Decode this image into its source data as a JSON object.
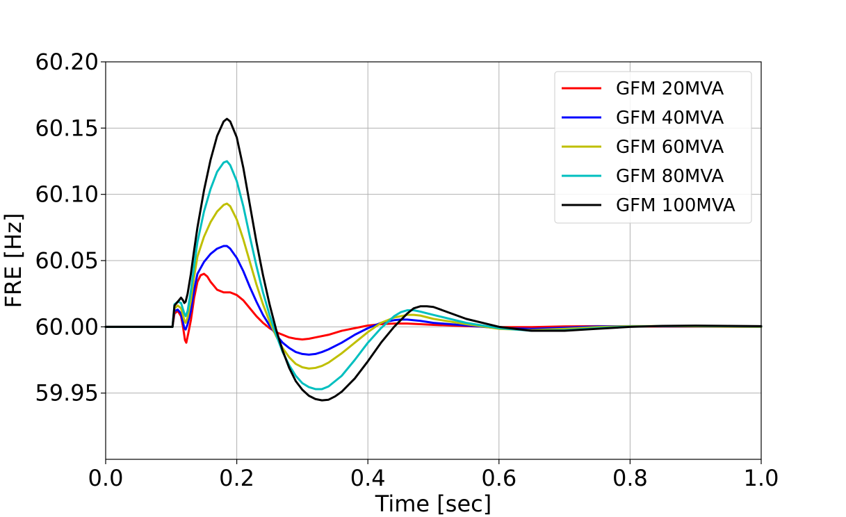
{
  "chart_data": {
    "type": "line",
    "title": "",
    "xlabel": "Time [sec]",
    "ylabel": "FRE [Hz]",
    "xlim": [
      0.0,
      1.0
    ],
    "ylim": [
      59.9,
      60.2
    ],
    "xticks": [
      0.0,
      0.2,
      0.4,
      0.6,
      0.8,
      1.0
    ],
    "xtick_labels": [
      "0.0",
      "0.2",
      "0.4",
      "0.6",
      "0.8",
      "1.0"
    ],
    "yticks": [
      59.95,
      60.0,
      60.05,
      60.1,
      60.15,
      60.2
    ],
    "ytick_labels": [
      "59.95",
      "60.00",
      "60.05",
      "60.10",
      "60.15",
      "60.20"
    ],
    "grid": true,
    "legend_position": "top-right",
    "series": [
      {
        "name": "GFM 20MVA",
        "color": "#ff0000",
        "points": [
          [
            0.0,
            60.0
          ],
          [
            0.1,
            60.0
          ],
          [
            0.102,
            60.0
          ],
          [
            0.105,
            60.01
          ],
          [
            0.11,
            60.012
          ],
          [
            0.115,
            60.008
          ],
          [
            0.118,
            60.0
          ],
          [
            0.121,
            59.99
          ],
          [
            0.123,
            59.988
          ],
          [
            0.126,
            59.995
          ],
          [
            0.13,
            60.005
          ],
          [
            0.135,
            60.022
          ],
          [
            0.14,
            60.034
          ],
          [
            0.145,
            60.039
          ],
          [
            0.15,
            60.04
          ],
          [
            0.155,
            60.038
          ],
          [
            0.16,
            60.034
          ],
          [
            0.165,
            60.031
          ],
          [
            0.17,
            60.028
          ],
          [
            0.18,
            60.026
          ],
          [
            0.19,
            60.026
          ],
          [
            0.2,
            60.024
          ],
          [
            0.21,
            60.02
          ],
          [
            0.22,
            60.014
          ],
          [
            0.23,
            60.008
          ],
          [
            0.24,
            60.003
          ],
          [
            0.25,
            59.999
          ],
          [
            0.26,
            59.996
          ],
          [
            0.27,
            59.994
          ],
          [
            0.28,
            59.992
          ],
          [
            0.29,
            59.991
          ],
          [
            0.3,
            59.9905
          ],
          [
            0.31,
            59.991
          ],
          [
            0.32,
            59.992
          ],
          [
            0.34,
            59.994
          ],
          [
            0.36,
            59.997
          ],
          [
            0.38,
            59.999
          ],
          [
            0.4,
            60.001
          ],
          [
            0.42,
            60.002
          ],
          [
            0.44,
            60.0025
          ],
          [
            0.46,
            60.0025
          ],
          [
            0.48,
            60.002
          ],
          [
            0.5,
            60.0015
          ],
          [
            0.55,
            60.0005
          ],
          [
            0.6,
            59.9998
          ],
          [
            0.65,
            59.9998
          ],
          [
            0.7,
            60.0003
          ],
          [
            0.75,
            60.0005
          ],
          [
            0.8,
            60.0003
          ],
          [
            0.85,
            60.0002
          ],
          [
            0.9,
            60.0001
          ],
          [
            1.0,
            60.0
          ]
        ]
      },
      {
        "name": "GFM 40MVA",
        "color": "#0000ff",
        "points": [
          [
            0.0,
            60.0
          ],
          [
            0.1,
            60.0
          ],
          [
            0.102,
            60.0
          ],
          [
            0.105,
            60.012
          ],
          [
            0.11,
            60.013
          ],
          [
            0.115,
            60.01
          ],
          [
            0.12,
            59.999
          ],
          [
            0.122,
            59.998
          ],
          [
            0.125,
            60.002
          ],
          [
            0.13,
            60.012
          ],
          [
            0.135,
            60.028
          ],
          [
            0.14,
            60.04
          ],
          [
            0.15,
            60.049
          ],
          [
            0.16,
            60.055
          ],
          [
            0.17,
            60.059
          ],
          [
            0.18,
            60.061
          ],
          [
            0.185,
            60.061
          ],
          [
            0.19,
            60.059
          ],
          [
            0.2,
            60.052
          ],
          [
            0.21,
            60.042
          ],
          [
            0.22,
            60.03
          ],
          [
            0.23,
            60.019
          ],
          [
            0.24,
            60.009
          ],
          [
            0.25,
            60.001
          ],
          [
            0.26,
            59.994
          ],
          [
            0.27,
            59.988
          ],
          [
            0.28,
            59.984
          ],
          [
            0.29,
            59.981
          ],
          [
            0.3,
            59.9795
          ],
          [
            0.31,
            59.979
          ],
          [
            0.32,
            59.9795
          ],
          [
            0.33,
            59.981
          ],
          [
            0.34,
            59.983
          ],
          [
            0.36,
            59.988
          ],
          [
            0.38,
            59.994
          ],
          [
            0.4,
            59.999
          ],
          [
            0.42,
            60.003
          ],
          [
            0.44,
            60.005
          ],
          [
            0.45,
            60.0055
          ],
          [
            0.46,
            60.0055
          ],
          [
            0.48,
            60.0045
          ],
          [
            0.5,
            60.003
          ],
          [
            0.55,
            60.001
          ],
          [
            0.6,
            59.999
          ],
          [
            0.65,
            59.9985
          ],
          [
            0.7,
            59.9993
          ],
          [
            0.75,
            60.0003
          ],
          [
            0.8,
            60.0005
          ],
          [
            0.85,
            60.0004
          ],
          [
            0.9,
            60.0003
          ],
          [
            1.0,
            60.0
          ]
        ]
      },
      {
        "name": "GFM 60MVA",
        "color": "#bfbf00",
        "points": [
          [
            0.0,
            60.0
          ],
          [
            0.1,
            60.0
          ],
          [
            0.102,
            60.0
          ],
          [
            0.105,
            60.014
          ],
          [
            0.11,
            60.016
          ],
          [
            0.115,
            60.014
          ],
          [
            0.12,
            60.005
          ],
          [
            0.122,
            60.003
          ],
          [
            0.125,
            60.007
          ],
          [
            0.13,
            60.02
          ],
          [
            0.135,
            60.038
          ],
          [
            0.14,
            60.053
          ],
          [
            0.15,
            60.068
          ],
          [
            0.16,
            60.079
          ],
          [
            0.17,
            60.087
          ],
          [
            0.18,
            60.092
          ],
          [
            0.185,
            60.093
          ],
          [
            0.19,
            60.091
          ],
          [
            0.2,
            60.081
          ],
          [
            0.21,
            60.066
          ],
          [
            0.22,
            60.049
          ],
          [
            0.23,
            60.032
          ],
          [
            0.24,
            60.017
          ],
          [
            0.25,
            60.004
          ],
          [
            0.26,
            59.993
          ],
          [
            0.27,
            59.984
          ],
          [
            0.28,
            59.977
          ],
          [
            0.29,
            59.972
          ],
          [
            0.3,
            59.9695
          ],
          [
            0.31,
            59.9685
          ],
          [
            0.32,
            59.969
          ],
          [
            0.33,
            59.9705
          ],
          [
            0.34,
            59.973
          ],
          [
            0.36,
            59.98
          ],
          [
            0.38,
            59.988
          ],
          [
            0.4,
            59.996
          ],
          [
            0.42,
            60.003
          ],
          [
            0.44,
            60.007
          ],
          [
            0.46,
            60.009
          ],
          [
            0.47,
            60.009
          ],
          [
            0.48,
            60.0085
          ],
          [
            0.5,
            60.006
          ],
          [
            0.55,
            60.002
          ],
          [
            0.6,
            59.9985
          ],
          [
            0.65,
            59.9975
          ],
          [
            0.7,
            59.9985
          ],
          [
            0.75,
            59.9998
          ],
          [
            0.8,
            60.0005
          ],
          [
            0.85,
            60.0006
          ],
          [
            0.9,
            60.0004
          ],
          [
            1.0,
            60.0
          ]
        ]
      },
      {
        "name": "GFM 80MVA",
        "color": "#00bfbf",
        "points": [
          [
            0.0,
            60.0
          ],
          [
            0.1,
            60.0
          ],
          [
            0.102,
            60.0
          ],
          [
            0.105,
            60.017
          ],
          [
            0.11,
            60.019
          ],
          [
            0.115,
            60.018
          ],
          [
            0.12,
            60.01
          ],
          [
            0.122,
            60.008
          ],
          [
            0.125,
            60.012
          ],
          [
            0.13,
            60.027
          ],
          [
            0.135,
            60.046
          ],
          [
            0.14,
            60.064
          ],
          [
            0.15,
            60.087
          ],
          [
            0.16,
            60.104
          ],
          [
            0.17,
            60.117
          ],
          [
            0.18,
            60.124
          ],
          [
            0.185,
            60.125
          ],
          [
            0.19,
            60.122
          ],
          [
            0.2,
            60.11
          ],
          [
            0.21,
            60.091
          ],
          [
            0.22,
            60.068
          ],
          [
            0.23,
            60.046
          ],
          [
            0.24,
            60.026
          ],
          [
            0.25,
            60.009
          ],
          [
            0.26,
            59.994
          ],
          [
            0.27,
            59.981
          ],
          [
            0.28,
            59.971
          ],
          [
            0.29,
            59.963
          ],
          [
            0.3,
            59.9575
          ],
          [
            0.31,
            59.9545
          ],
          [
            0.32,
            59.953
          ],
          [
            0.33,
            59.953
          ],
          [
            0.34,
            59.955
          ],
          [
            0.36,
            59.963
          ],
          [
            0.38,
            59.975
          ],
          [
            0.4,
            59.988
          ],
          [
            0.42,
            59.999
          ],
          [
            0.44,
            60.008
          ],
          [
            0.45,
            60.011
          ],
          [
            0.46,
            60.0125
          ],
          [
            0.47,
            60.0125
          ],
          [
            0.48,
            60.0115
          ],
          [
            0.5,
            60.009
          ],
          [
            0.55,
            60.003
          ],
          [
            0.6,
            59.999
          ],
          [
            0.65,
            59.997
          ],
          [
            0.7,
            59.9975
          ],
          [
            0.75,
            59.999
          ],
          [
            0.8,
            60.0002
          ],
          [
            0.85,
            60.0006
          ],
          [
            0.9,
            60.0007
          ],
          [
            1.0,
            60.0003
          ]
        ]
      },
      {
        "name": "GFM 100MVA",
        "color": "#000000",
        "points": [
          [
            0.0,
            60.0
          ],
          [
            0.1,
            60.0
          ],
          [
            0.102,
            60.0
          ],
          [
            0.105,
            60.016
          ],
          [
            0.11,
            60.019
          ],
          [
            0.115,
            60.022
          ],
          [
            0.118,
            60.02
          ],
          [
            0.12,
            60.018
          ],
          [
            0.122,
            60.019
          ],
          [
            0.125,
            60.025
          ],
          [
            0.13,
            60.04
          ],
          [
            0.135,
            60.058
          ],
          [
            0.14,
            60.075
          ],
          [
            0.15,
            60.103
          ],
          [
            0.16,
            60.126
          ],
          [
            0.17,
            60.144
          ],
          [
            0.18,
            60.155
          ],
          [
            0.185,
            60.157
          ],
          [
            0.19,
            60.155
          ],
          [
            0.2,
            60.143
          ],
          [
            0.21,
            60.12
          ],
          [
            0.22,
            60.092
          ],
          [
            0.23,
            60.064
          ],
          [
            0.24,
            60.039
          ],
          [
            0.25,
            60.017
          ],
          [
            0.26,
            59.998
          ],
          [
            0.27,
            59.982
          ],
          [
            0.28,
            59.969
          ],
          [
            0.29,
            59.959
          ],
          [
            0.3,
            59.9525
          ],
          [
            0.31,
            59.948
          ],
          [
            0.32,
            59.9455
          ],
          [
            0.33,
            59.9445
          ],
          [
            0.34,
            59.945
          ],
          [
            0.35,
            59.9475
          ],
          [
            0.36,
            59.951
          ],
          [
            0.38,
            59.961
          ],
          [
            0.4,
            59.974
          ],
          [
            0.42,
            59.988
          ],
          [
            0.44,
            60.0
          ],
          [
            0.46,
            60.01
          ],
          [
            0.47,
            60.014
          ],
          [
            0.48,
            60.0155
          ],
          [
            0.49,
            60.0155
          ],
          [
            0.5,
            60.015
          ],
          [
            0.55,
            60.006
          ],
          [
            0.6,
            60.0
          ],
          [
            0.65,
            59.997
          ],
          [
            0.7,
            59.997
          ],
          [
            0.75,
            59.9985
          ],
          [
            0.8,
            60.0
          ],
          [
            0.85,
            60.0007
          ],
          [
            0.9,
            60.0009
          ],
          [
            1.0,
            60.0005
          ]
        ]
      }
    ]
  }
}
